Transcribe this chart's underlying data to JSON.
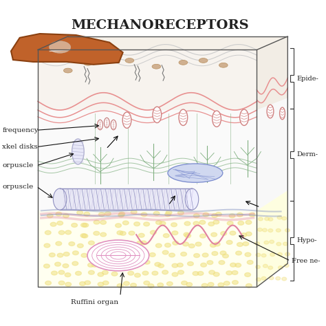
{
  "title": "MECHANORECEPTORS",
  "title_fontsize": 14,
  "title_weight": "bold",
  "bg_color": "#ffffff",
  "labels": {
    "frequency": "frequency",
    "merkel": "xkel disks",
    "meissner_top": "orpuscle",
    "pacinian": "orpuscle",
    "ruffini": "Ruffini organ",
    "epidermis": "Epide-",
    "dermis": "Derm-",
    "hypodermis": "Hypo-",
    "free_nerve": "Free ne-"
  },
  "colors": {
    "finger": "#c0622a",
    "finger_edge": "#8a4010",
    "skin_top": "#f5f0e8",
    "epidermis_fill": "#f7f3ee",
    "dermis_fill": "#fafafa",
    "hypodermis_fill": "#fffff0",
    "right_face": "#f5f5f5",
    "hypo_dots": "#f0e080",
    "skin_outline": "#888888",
    "wave_pink": "#e89090",
    "wave_gray": "#cccccc",
    "nerve_green": "#80b080",
    "nerve_blue": "#8090c0",
    "nerve_pink": "#e080a0",
    "meissner_color": "#d08080",
    "merkel_color": "#c07070",
    "pacinian_color": "#b0b0d0",
    "ruffini_color": "#e090c0",
    "text_color": "#222222",
    "arrow_color": "#111111",
    "box_outline": "#555555",
    "cross_hatch": "#9090c0",
    "cross_hatch2": "#c0b0e0",
    "blue_struct": "#8090d0",
    "blue_struct_fill": "#d0d8f0",
    "dot_color": "#d0b090",
    "dot_edge": "#b89060",
    "bracket_color": "#333333",
    "nail_fill": "#e8e8e0",
    "nail_edge": "#cccccc",
    "corpuscle_fill": "#e8e8f8",
    "pac_fill": "#e8e8f5",
    "pac_fill2": "#eeeefd",
    "epi_right": "#f2ede5",
    "derm_right": "#f8f8f8",
    "hypo_right": "#fefee0"
  }
}
